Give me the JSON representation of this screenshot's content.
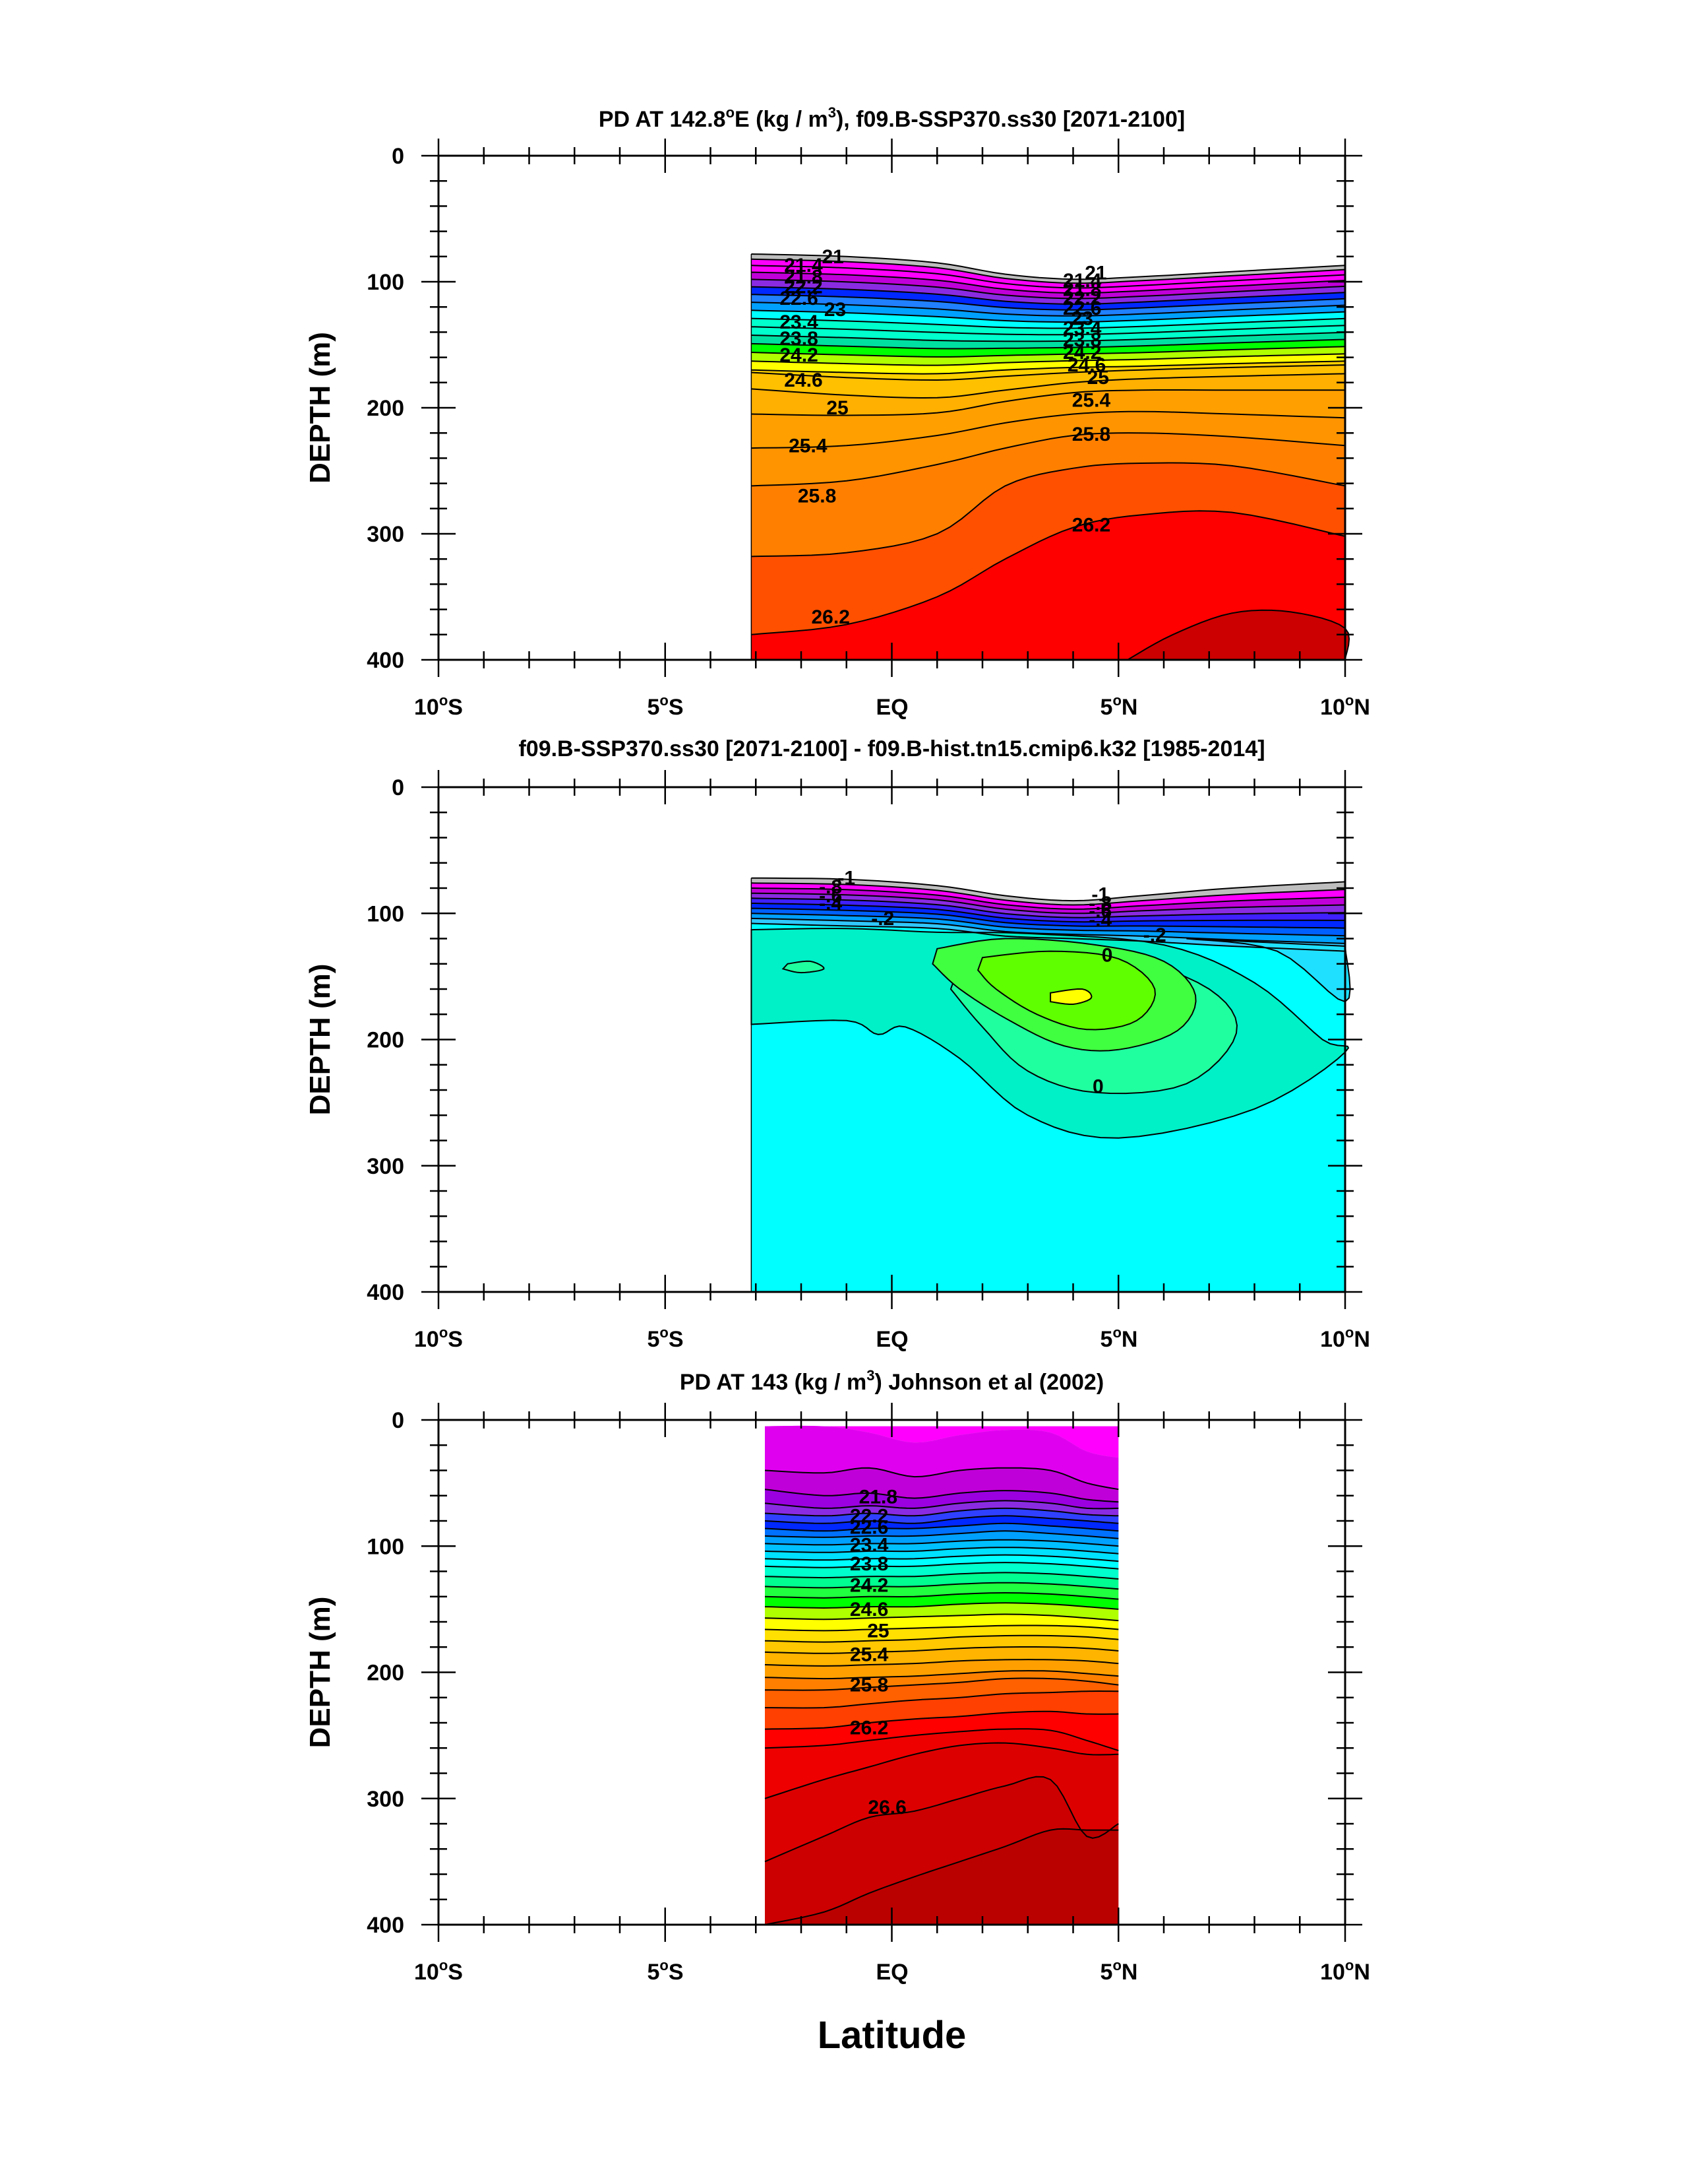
{
  "chart_data": [
    {
      "type": "contour",
      "title": "PD AT 142.8°E (kg / m³), f09.B-SSP370.ss30 [2071-2100]",
      "title_parts": [
        "PD AT 142.8",
        "o",
        "E (kg / m",
        "3",
        "), f09.B-SSP370.ss30 [2071-2100]"
      ],
      "ylabel": "DEPTH (m)",
      "xlabel": "",
      "xlim": [
        -10,
        10
      ],
      "ylim": [
        0,
        400
      ],
      "x_ticks": [
        "10°S",
        "5°S",
        "EQ",
        "5°N",
        "10°N"
      ],
      "y_ticks": [
        "0",
        "100",
        "200",
        "300",
        "400"
      ],
      "data_extent_x": [
        -3.1,
        10
      ],
      "contour_labels": [
        {
          "text": "21",
          "x": -1.3,
          "y": 80
        },
        {
          "text": "21.4",
          "x": -1.95,
          "y": 87
        },
        {
          "text": "21.8",
          "x": -1.95,
          "y": 96
        },
        {
          "text": "22.2",
          "x": -1.95,
          "y": 104
        },
        {
          "text": "22.6",
          "x": -2.05,
          "y": 113
        },
        {
          "text": "23",
          "x": -1.25,
          "y": 122
        },
        {
          "text": "23.4",
          "x": -2.05,
          "y": 132
        },
        {
          "text": "23.8",
          "x": -2.05,
          "y": 145
        },
        {
          "text": "24.2",
          "x": -2.05,
          "y": 158
        },
        {
          "text": "24.6",
          "x": -1.95,
          "y": 178
        },
        {
          "text": "25",
          "x": -1.2,
          "y": 200
        },
        {
          "text": "25.4",
          "x": -1.85,
          "y": 230
        },
        {
          "text": "25.8",
          "x": -1.65,
          "y": 270
        },
        {
          "text": "26.2",
          "x": -1.35,
          "y": 366
        },
        {
          "text": "21",
          "x": 4.5,
          "y": 93
        },
        {
          "text": "21.4",
          "x": 4.2,
          "y": 99
        },
        {
          "text": "21.8",
          "x": 4.2,
          "y": 106
        },
        {
          "text": "22.2",
          "x": 4.2,
          "y": 113
        },
        {
          "text": "22.6",
          "x": 4.2,
          "y": 121
        },
        {
          "text": "23",
          "x": 4.2,
          "y": 129
        },
        {
          "text": "23.4",
          "x": 4.2,
          "y": 137
        },
        {
          "text": "23.8",
          "x": 4.2,
          "y": 146
        },
        {
          "text": "24.2",
          "x": 4.2,
          "y": 156
        },
        {
          "text": "24.6",
          "x": 4.3,
          "y": 166
        },
        {
          "text": "25",
          "x": 4.55,
          "y": 176
        },
        {
          "text": "25.4",
          "x": 4.4,
          "y": 194
        },
        {
          "text": "25.8",
          "x": 4.4,
          "y": 221
        },
        {
          "text": "26.2",
          "x": 4.4,
          "y": 293
        }
      ]
    },
    {
      "type": "contour",
      "title": "f09.B-SSP370.ss30 [2071-2100] - f09.B-hist.tn15.cmip6.k32 [1985-2014]",
      "ylabel": "DEPTH (m)",
      "xlabel": "",
      "xlim": [
        -10,
        10
      ],
      "ylim": [
        0,
        400
      ],
      "x_ticks": [
        "10°S",
        "5°S",
        "EQ",
        "5°N",
        "10°N"
      ],
      "y_ticks": [
        "0",
        "100",
        "200",
        "300",
        "400"
      ],
      "data_extent_x": [
        -3.1,
        10
      ],
      "contour_labels": [
        {
          "text": "-1",
          "x": -1.0,
          "y": 72
        },
        {
          "text": "-.8",
          "x": -1.35,
          "y": 79
        },
        {
          "text": "-.6",
          "x": -1.35,
          "y": 86
        },
        {
          "text": "-.4",
          "x": -1.35,
          "y": 92
        },
        {
          "text": "-.2",
          "x": -0.2,
          "y": 104
        },
        {
          "text": "-1",
          "x": 4.6,
          "y": 85
        },
        {
          "text": "-.8",
          "x": 4.6,
          "y": 92
        },
        {
          "text": "-.6",
          "x": 4.6,
          "y": 98
        },
        {
          "text": "-.4",
          "x": 4.6,
          "y": 105
        },
        {
          "text": "-.2",
          "x": 5.8,
          "y": 117
        },
        {
          "text": "0",
          "x": 4.75,
          "y": 133
        },
        {
          "text": "0",
          "x": 4.55,
          "y": 237
        }
      ]
    },
    {
      "type": "contour",
      "title": "PD AT 143 (kg / m³) Johnson et al (2002)",
      "title_parts": [
        "PD AT 143 (kg / m",
        "3",
        ") Johnson et al (2002)"
      ],
      "ylabel": "DEPTH (m)",
      "xlabel": "Latitude",
      "xlim": [
        -10,
        10
      ],
      "ylim": [
        0,
        400
      ],
      "x_ticks": [
        "10°S",
        "5°S",
        "EQ",
        "5°N",
        "10°N"
      ],
      "y_ticks": [
        "0",
        "100",
        "200",
        "300",
        "400"
      ],
      "data_extent_x": [
        -2.8,
        5
      ],
      "contour_labels": [
        {
          "text": "21.8",
          "x": -0.3,
          "y": 61
        },
        {
          "text": "22.2",
          "x": -0.5,
          "y": 76
        },
        {
          "text": "22.6",
          "x": -0.5,
          "y": 85
        },
        {
          "text": "23.4",
          "x": -0.5,
          "y": 99
        },
        {
          "text": "23.8",
          "x": -0.5,
          "y": 114
        },
        {
          "text": "24.2",
          "x": -0.5,
          "y": 131
        },
        {
          "text": "24.6",
          "x": -0.5,
          "y": 150
        },
        {
          "text": "25",
          "x": -0.3,
          "y": 167
        },
        {
          "text": "25.4",
          "x": -0.5,
          "y": 186
        },
        {
          "text": "25.8",
          "x": -0.5,
          "y": 210
        },
        {
          "text": "26.2",
          "x": -0.5,
          "y": 244
        },
        {
          "text": "26.6",
          "x": -0.1,
          "y": 307
        }
      ]
    }
  ],
  "exponent_marks": {
    "degree": "o",
    "cubed": "3"
  },
  "colors": {
    "gray": "#bebebe",
    "magenta": "#ff00ff",
    "violet": "#c000d8",
    "purple": "#8a2be2",
    "blue": "#0028ff",
    "midblue": "#2080ff",
    "skyblue": "#00a0ff",
    "cyan": "#00ffff",
    "aqua": "#00ffcc",
    "green": "#00ff00",
    "lime": "#b0ff00",
    "yellow": "#ffff00",
    "orange": "#ffa500",
    "darkorange": "#ff8000",
    "redorange": "#ff4000",
    "red": "#ff0000",
    "darkred": "#cc0000"
  }
}
